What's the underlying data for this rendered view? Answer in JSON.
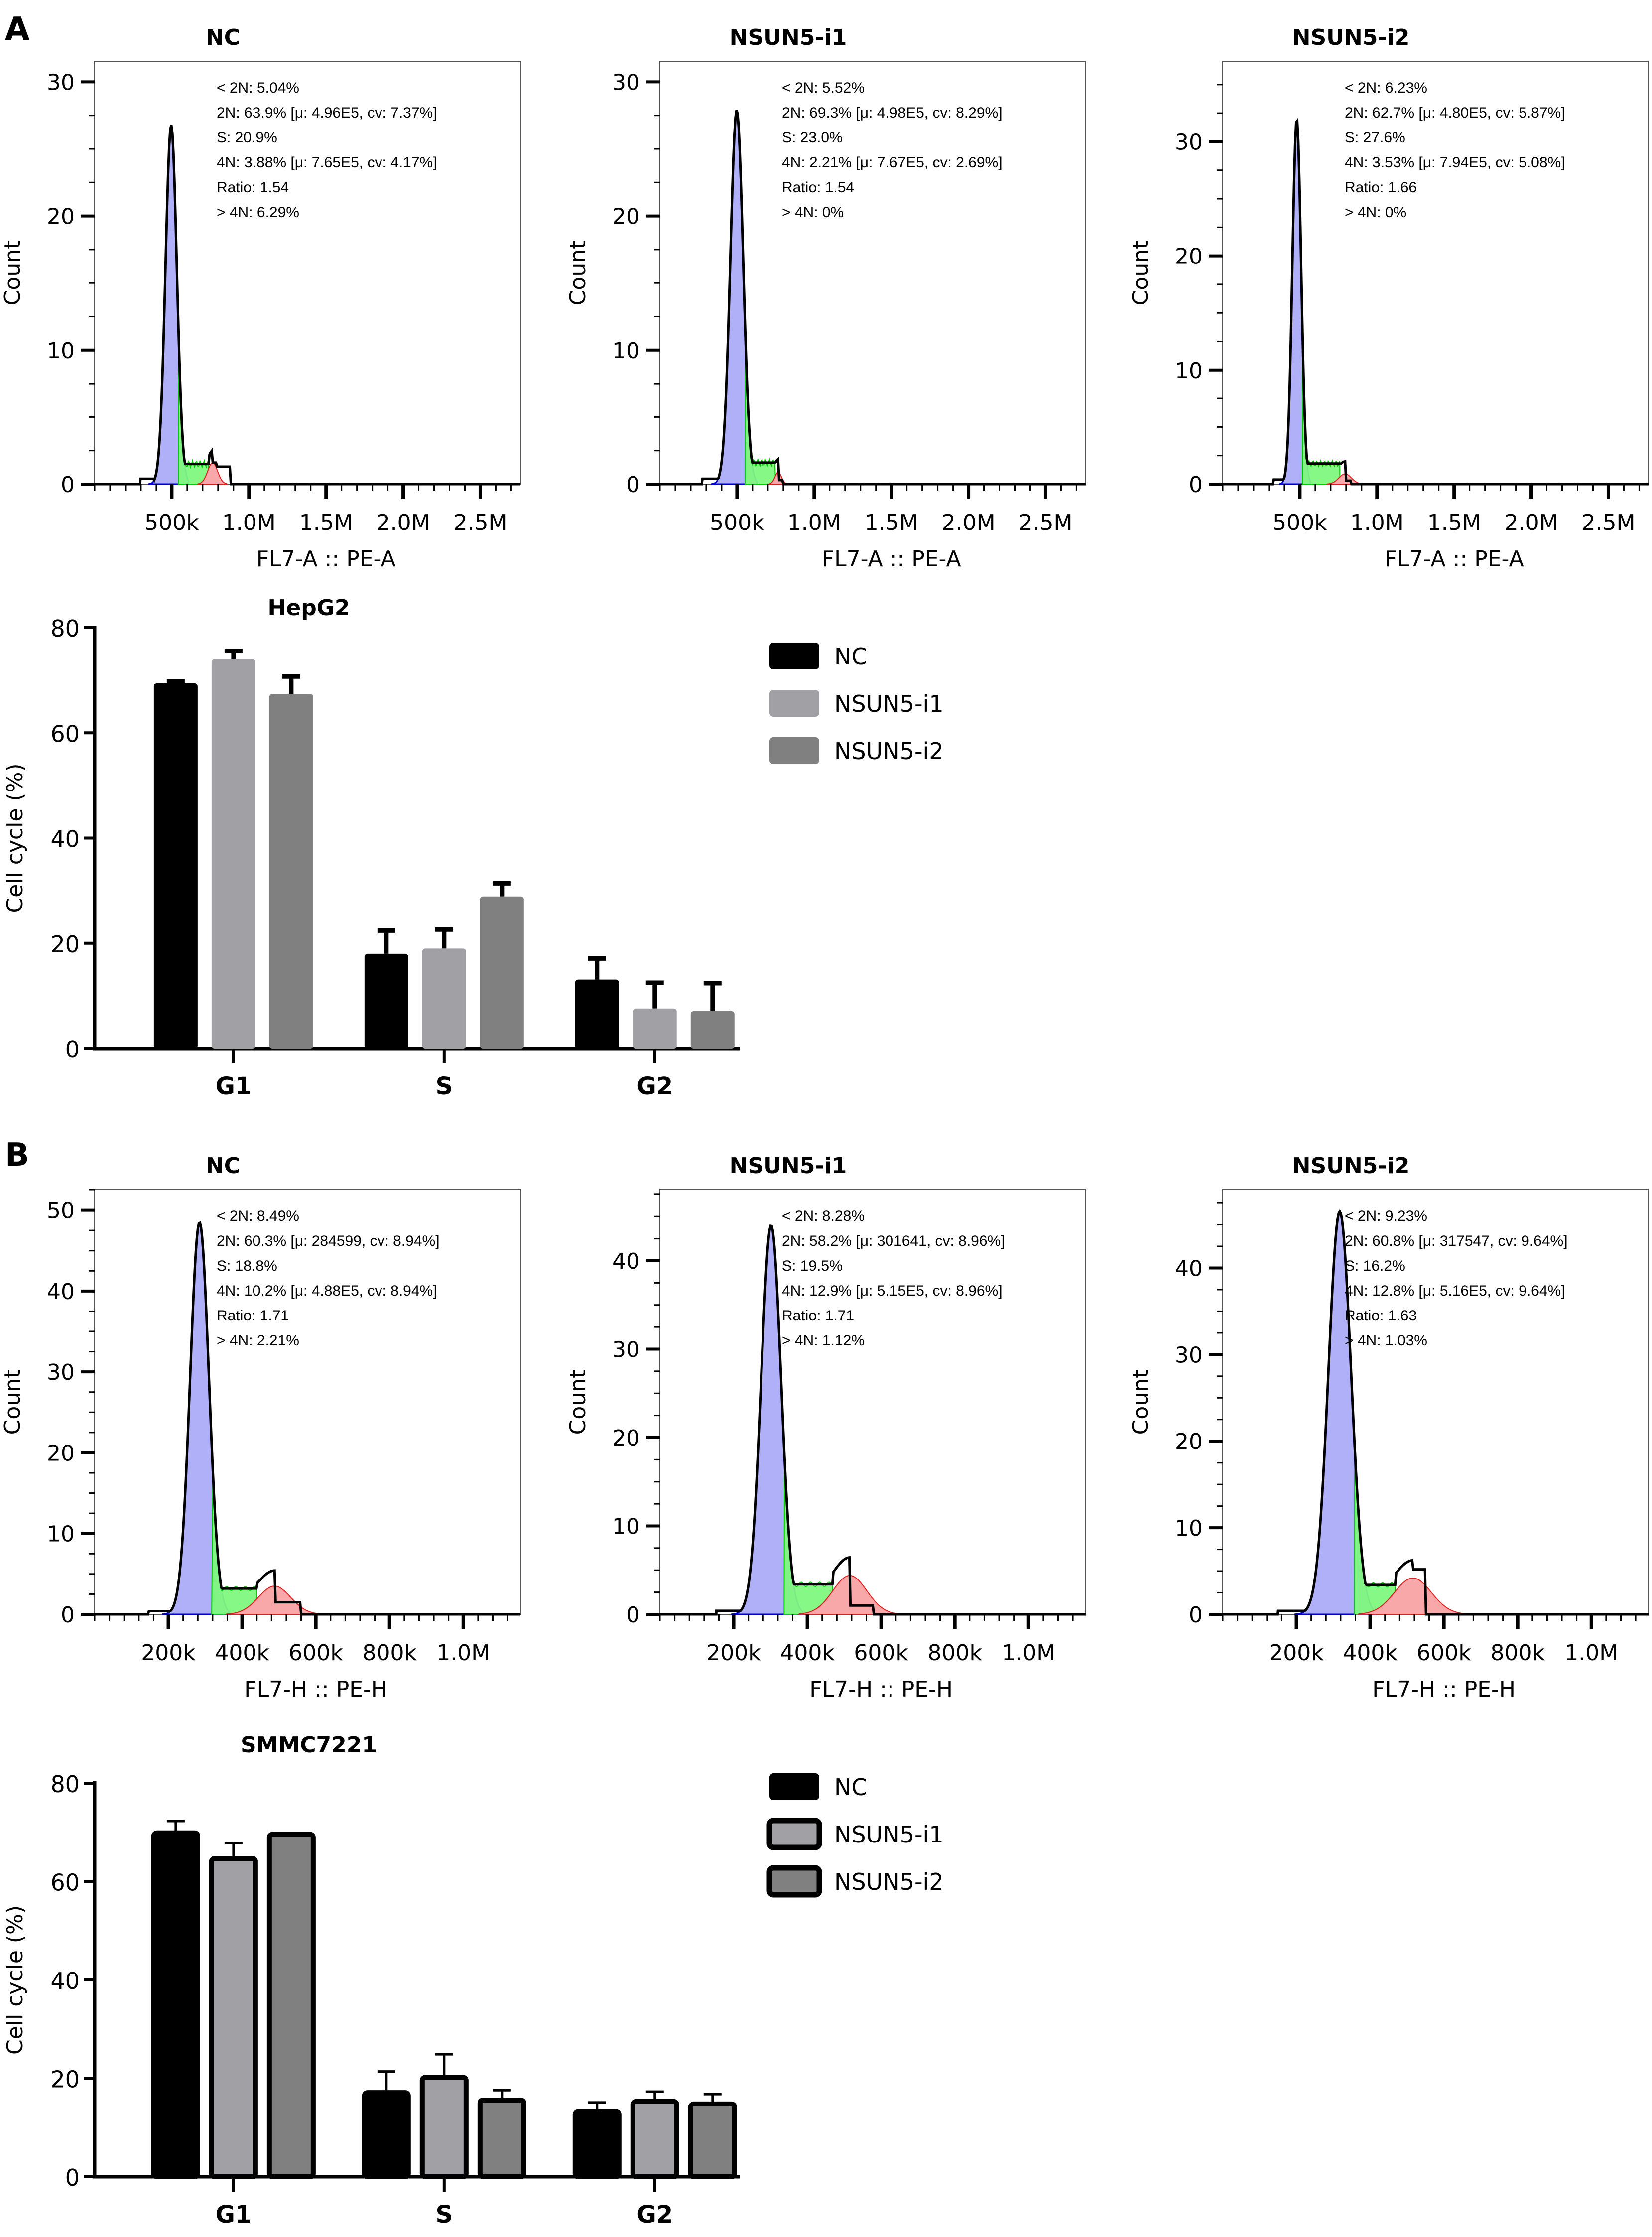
{
  "figure": {
    "panels": [
      {
        "letter": "A"
      },
      {
        "letter": "B"
      }
    ]
  },
  "chart_data": [
    {
      "type": "area",
      "panel": "A",
      "title": "NC",
      "xlabel": "FL7-A :: PE-A",
      "ylabel": "Count",
      "xticks": [
        "500k",
        "1.0M",
        "1.5M",
        "2.0M",
        "2.5M"
      ],
      "xtick_values": [
        500000,
        1000000,
        1500000,
        2000000,
        2500000
      ],
      "yticks": [
        "0",
        "10",
        "20",
        "30"
      ],
      "ytick_values": [
        0,
        10,
        20,
        30
      ],
      "xlim": [
        0,
        2760000
      ],
      "ylim": [
        0,
        31.5
      ],
      "stats": [
        "< 2N: 5.04%",
        "2N: 63.9%   [μ: 4.96E5, cv: 7.37%]",
        "S: 20.9%",
        "4N: 3.88%   [μ: 7.65E5, cv: 4.17%]",
        "Ratio: 1.54",
        "> 4N: 6.29%"
      ],
      "peak2N": {
        "mu": 496000,
        "cv": 0.0737,
        "height": 26.8
      },
      "peak4N": {
        "mu": 765000,
        "cv": 0.0417,
        "height": 1.6
      },
      "s_level": 1.5,
      "s_range": [
        540000,
        740000
      ],
      "outline_tail": [
        [
          790000,
          1.6
        ],
        [
          880000,
          1.3
        ],
        [
          940000,
          0
        ]
      ]
    },
    {
      "type": "area",
      "panel": "A",
      "title": "NSUN5-i1",
      "xlabel": "FL7-A :: PE-A",
      "ylabel": "Count",
      "xticks": [
        "500k",
        "1.0M",
        "1.5M",
        "2.0M",
        "2.5M"
      ],
      "xtick_values": [
        500000,
        1000000,
        1500000,
        2000000,
        2500000
      ],
      "yticks": [
        "0",
        "10",
        "20",
        "30"
      ],
      "ytick_values": [
        0,
        10,
        20,
        30
      ],
      "xlim": [
        0,
        2760000
      ],
      "ylim": [
        0,
        31.5
      ],
      "stats": [
        "< 2N: 5.52%",
        "2N: 69.3%   [μ: 4.98E5, cv: 8.29%]",
        "S: 23.0%",
        "4N: 2.21%   [μ: 7.67E5, cv: 2.69%]",
        "Ratio: 1.54",
        "> 4N: 0%"
      ],
      "peak2N": {
        "mu": 498000,
        "cv": 0.0829,
        "height": 27.9
      },
      "peak4N": {
        "mu": 767000,
        "cv": 0.0269,
        "height": 0.9
      },
      "s_level": 1.6,
      "s_range": [
        550000,
        750000
      ],
      "outline_tail": [
        [
          750000,
          1.4
        ],
        [
          800000,
          0.3
        ],
        [
          840000,
          0
        ]
      ]
    },
    {
      "type": "area",
      "panel": "A",
      "title": "NSUN5-i2",
      "xlabel": "FL7-A :: PE-A",
      "ylabel": "Count",
      "xticks": [
        "500k",
        "1.0M",
        "1.5M",
        "2.0M",
        "2.5M"
      ],
      "xtick_values": [
        500000,
        1000000,
        1500000,
        2000000,
        2500000
      ],
      "yticks": [
        "0",
        "10",
        "20",
        "30"
      ],
      "ytick_values": [
        0,
        10,
        20,
        30
      ],
      "xlim": [
        0,
        2760000
      ],
      "ylim": [
        0,
        37
      ],
      "stats": [
        "< 2N: 6.23%",
        "2N: 62.7%   [μ: 4.80E5, cv: 5.87%]",
        "S: 27.6%",
        "4N: 3.53%   [μ: 7.94E5, cv: 5.08%]",
        "Ratio: 1.66",
        "> 4N: 0%"
      ],
      "peak2N": {
        "mu": 480000,
        "cv": 0.0587,
        "height": 32.0
      },
      "peak4N": {
        "mu": 794000,
        "cv": 0.0508,
        "height": 0.9
      },
      "s_level": 1.8,
      "s_range": [
        520000,
        760000
      ],
      "outline_tail": [
        [
          770000,
          1.1
        ],
        [
          830000,
          0.3
        ],
        [
          870000,
          0
        ]
      ]
    },
    {
      "type": "area",
      "panel": "B",
      "title": "NC",
      "xlabel": "FL7-H :: PE-H",
      "ylabel": "Count",
      "xticks": [
        "200k",
        "400k",
        "600k",
        "800k",
        "1.0M"
      ],
      "xtick_values": [
        200000,
        400000,
        600000,
        800000,
        1000000
      ],
      "yticks": [
        "0",
        "10",
        "20",
        "30",
        "40",
        "50"
      ],
      "ytick_values": [
        0,
        10,
        20,
        30,
        40,
        50
      ],
      "xlim": [
        0,
        1155000
      ],
      "ylim": [
        0,
        52.5
      ],
      "stats": [
        "< 2N: 8.49%",
        "2N: 60.3%   [μ: 284599, cv: 8.94%]",
        "S: 18.8%",
        "4N: 10.2%   [μ: 4.88E5, cv: 8.94%]",
        "Ratio: 1.71",
        "> 4N: 2.21%"
      ],
      "peak2N": {
        "mu": 284599,
        "cv": 0.0894,
        "height": 48.5
      },
      "peak4N": {
        "mu": 488000,
        "cv": 0.0894,
        "height": 3.5
      },
      "s_level": 3.2,
      "s_range": [
        310000,
        440000
      ],
      "outline_tail": [
        [
          560000,
          1.5
        ],
        [
          590000,
          0
        ]
      ]
    },
    {
      "type": "area",
      "panel": "B",
      "title": "NSUN5-i1",
      "xlabel": "FL7-H :: PE-H",
      "ylabel": "Count",
      "xticks": [
        "200k",
        "400k",
        "600k",
        "800k",
        "1.0M"
      ],
      "xtick_values": [
        200000,
        400000,
        600000,
        800000,
        1000000
      ],
      "yticks": [
        "0",
        "10",
        "20",
        "30",
        "40"
      ],
      "ytick_values": [
        0,
        10,
        20,
        30,
        40
      ],
      "xlim": [
        0,
        1155000
      ],
      "ylim": [
        0,
        48
      ],
      "stats": [
        "< 2N: 8.28%",
        "2N: 58.2%   [μ: 301641, cv: 8.96%]",
        "S: 19.5%",
        "4N: 12.9%   [μ: 5.15E5, cv: 8.96%]",
        "Ratio: 1.71",
        "> 4N: 1.12%"
      ],
      "peak2N": {
        "mu": 301641,
        "cv": 0.0896,
        "height": 44.0
      },
      "peak4N": {
        "mu": 515000,
        "cv": 0.0896,
        "height": 4.4
      },
      "s_level": 3.4,
      "s_range": [
        330000,
        470000
      ],
      "outline_tail": [
        [
          580000,
          1.0
        ],
        [
          600000,
          0
        ]
      ]
    },
    {
      "type": "area",
      "panel": "B",
      "title": "NSUN5-i2",
      "xlabel": "FL7-H :: PE-H",
      "ylabel": "Count",
      "xticks": [
        "200k",
        "400k",
        "600k",
        "800k",
        "1.0M"
      ],
      "xtick_values": [
        200000,
        400000,
        600000,
        800000,
        1000000
      ],
      "yticks": [
        "0",
        "10",
        "20",
        "30",
        "40"
      ],
      "ytick_values": [
        0,
        10,
        20,
        30,
        40
      ],
      "xlim": [
        0,
        1155000
      ],
      "ylim": [
        0,
        49
      ],
      "stats": [
        "< 2N: 9.23%",
        "2N: 60.8%   [μ: 317547, cv: 9.64%]",
        "S: 16.2%",
        "4N: 12.8%   [μ: 5.16E5, cv: 9.64%]",
        "Ratio: 1.63",
        "> 4N: 1.03%"
      ],
      "peak2N": {
        "mu": 317547,
        "cv": 0.0964,
        "height": 46.5
      },
      "peak4N": {
        "mu": 516000,
        "cv": 0.0964,
        "height": 4.2
      },
      "s_level": 3.4,
      "s_range": [
        350000,
        470000
      ],
      "outline_tail": [
        [
          550000,
          5.2
        ],
        [
          590000,
          0
        ]
      ]
    },
    {
      "type": "bar",
      "panel": "A",
      "title": "HepG2",
      "ylabel": "Cell cycle (%)",
      "categories": [
        "G1",
        "S",
        "G2"
      ],
      "yticks": [
        "0",
        "20",
        "40",
        "60",
        "80"
      ],
      "ytick_values": [
        0,
        20,
        40,
        60,
        80
      ],
      "ylim": [
        0,
        80
      ],
      "outlined": false,
      "legend_position": "right",
      "series": [
        {
          "name": "NC",
          "color": "#000000",
          "values": [
            69.4,
            18.0,
            13.1
          ],
          "errors": [
            0.4,
            4.4,
            4.0
          ]
        },
        {
          "name": "NSUN5-i1",
          "color": "#a1a1a5",
          "values": [
            74.0,
            19.0,
            7.6
          ],
          "errors": [
            1.6,
            3.6,
            4.9
          ]
        },
        {
          "name": "NSUN5-i2",
          "color": "#808080",
          "values": [
            67.4,
            28.9,
            7.1
          ],
          "errors": [
            3.3,
            2.5,
            5.3
          ]
        }
      ]
    },
    {
      "type": "bar",
      "panel": "B",
      "title": "SMMC7221",
      "ylabel": "Cell cycle (%)",
      "categories": [
        "G1",
        "S",
        "G2"
      ],
      "yticks": [
        "0",
        "20",
        "40",
        "60",
        "80"
      ],
      "ytick_values": [
        0,
        20,
        40,
        60,
        80
      ],
      "ylim": [
        0,
        80
      ],
      "outlined": true,
      "legend_position": "right",
      "series": [
        {
          "name": "NC",
          "color": "#000000",
          "values": [
            69.9,
            17.1,
            13.2
          ],
          "errors": [
            2.4,
            4.3,
            1.9
          ]
        },
        {
          "name": "NSUN5-i1",
          "color": "#a1a1a5",
          "values": [
            64.7,
            20.2,
            15.3
          ],
          "errors": [
            3.2,
            4.7,
            2.0
          ]
        },
        {
          "name": "NSUN5-i2",
          "color": "#808080",
          "values": [
            69.6,
            15.6,
            14.8
          ],
          "errors": [
            0.0,
            2.0,
            2.0
          ]
        }
      ]
    }
  ],
  "colors": {
    "g1_fill": "#b0b0f8",
    "g1_line": "#0000cc",
    "s_fill": "#80f880",
    "s_line": "#00cc00",
    "overlap_fill": "#50d080",
    "g2_fill": "#f8a8a8",
    "g2_line": "#e02020",
    "outline": "#000000"
  }
}
